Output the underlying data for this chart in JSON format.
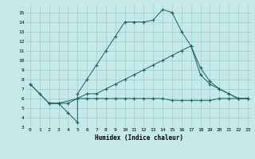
{
  "xlabel": "Humidex (Indice chaleur)",
  "background_color": "#c5e8e8",
  "grid_color": "#9ecece",
  "line_color": "#1a6060",
  "xlim": [
    -0.5,
    23.5
  ],
  "ylim": [
    3,
    15.8
  ],
  "xticks": [
    0,
    1,
    2,
    3,
    4,
    5,
    6,
    7,
    8,
    9,
    10,
    11,
    12,
    13,
    14,
    15,
    16,
    17,
    18,
    19,
    20,
    21,
    22,
    23
  ],
  "yticks": [
    3,
    4,
    5,
    6,
    7,
    8,
    9,
    10,
    11,
    12,
    13,
    14,
    15
  ],
  "line1_x": [
    0,
    1,
    2,
    3,
    4,
    5,
    5,
    6,
    7,
    8,
    9,
    10,
    11,
    12,
    13,
    14,
    15,
    16,
    17,
    18,
    19,
    20,
    21,
    22,
    23
  ],
  "line1_y": [
    7.5,
    6.5,
    5.5,
    5.5,
    4.5,
    3.5,
    6.5,
    8.0,
    9.5,
    11.0,
    12.5,
    14.0,
    14.0,
    14.0,
    14.2,
    15.3,
    15.0,
    13.0,
    11.5,
    9.2,
    7.8,
    7.0,
    6.5,
    6.0,
    6.0
  ],
  "line2_x": [
    0,
    2,
    3,
    5,
    6,
    7,
    8,
    9,
    10,
    11,
    12,
    13,
    14,
    15,
    16,
    17,
    18,
    19,
    20,
    21,
    22,
    23
  ],
  "line2_y": [
    7.5,
    5.5,
    5.5,
    6.0,
    6.5,
    6.5,
    7.0,
    7.5,
    8.0,
    8.5,
    9.0,
    9.5,
    10.0,
    10.5,
    11.0,
    11.5,
    8.5,
    7.5,
    7.0,
    6.5,
    6.0,
    6.0
  ],
  "line3_x": [
    2,
    3,
    4,
    5,
    6,
    7,
    8,
    9,
    10,
    11,
    12,
    13,
    14,
    15,
    16,
    17,
    18,
    19,
    20,
    21,
    22,
    23
  ],
  "line3_y": [
    5.5,
    5.5,
    5.5,
    6.0,
    6.0,
    6.0,
    6.0,
    6.0,
    6.0,
    6.0,
    6.0,
    6.0,
    6.0,
    5.8,
    5.8,
    5.8,
    5.8,
    5.8,
    6.0,
    6.0,
    6.0,
    6.0
  ]
}
